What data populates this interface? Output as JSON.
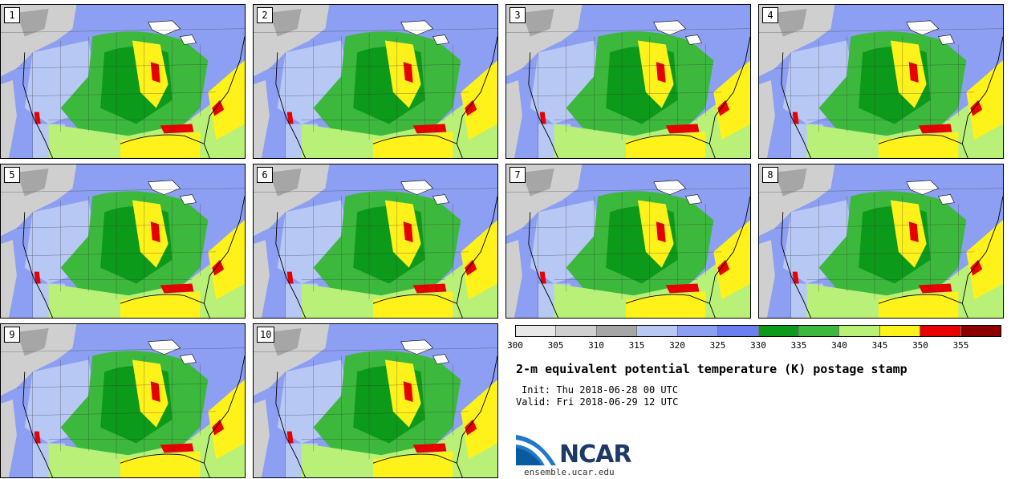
{
  "panels": [
    "1",
    "2",
    "3",
    "4",
    "5",
    "6",
    "7",
    "8",
    "9",
    "10"
  ],
  "colorbar": {
    "colors": [
      "#e8e8e8",
      "#cfcfcf",
      "#a6a6a6",
      "#b8c8f4",
      "#8c9ff2",
      "#6a7ff0",
      "#0c9a1a",
      "#3cb83c",
      "#b8f078",
      "#fff21a",
      "#e80000",
      "#8c0000"
    ],
    "ticks": [
      "300",
      "305",
      "310",
      "315",
      "320",
      "325",
      "330",
      "335",
      "340",
      "345",
      "350",
      "355"
    ]
  },
  "title": "2-m equivalent potential temperature (K) postage stamp",
  "init": "Init: Thu 2018-06-28 00 UTC",
  "valid": "Valid: Fri 2018-06-29 12 UTC",
  "logo": {
    "text": "NCAR",
    "url": "ensemble.ucar.edu"
  }
}
